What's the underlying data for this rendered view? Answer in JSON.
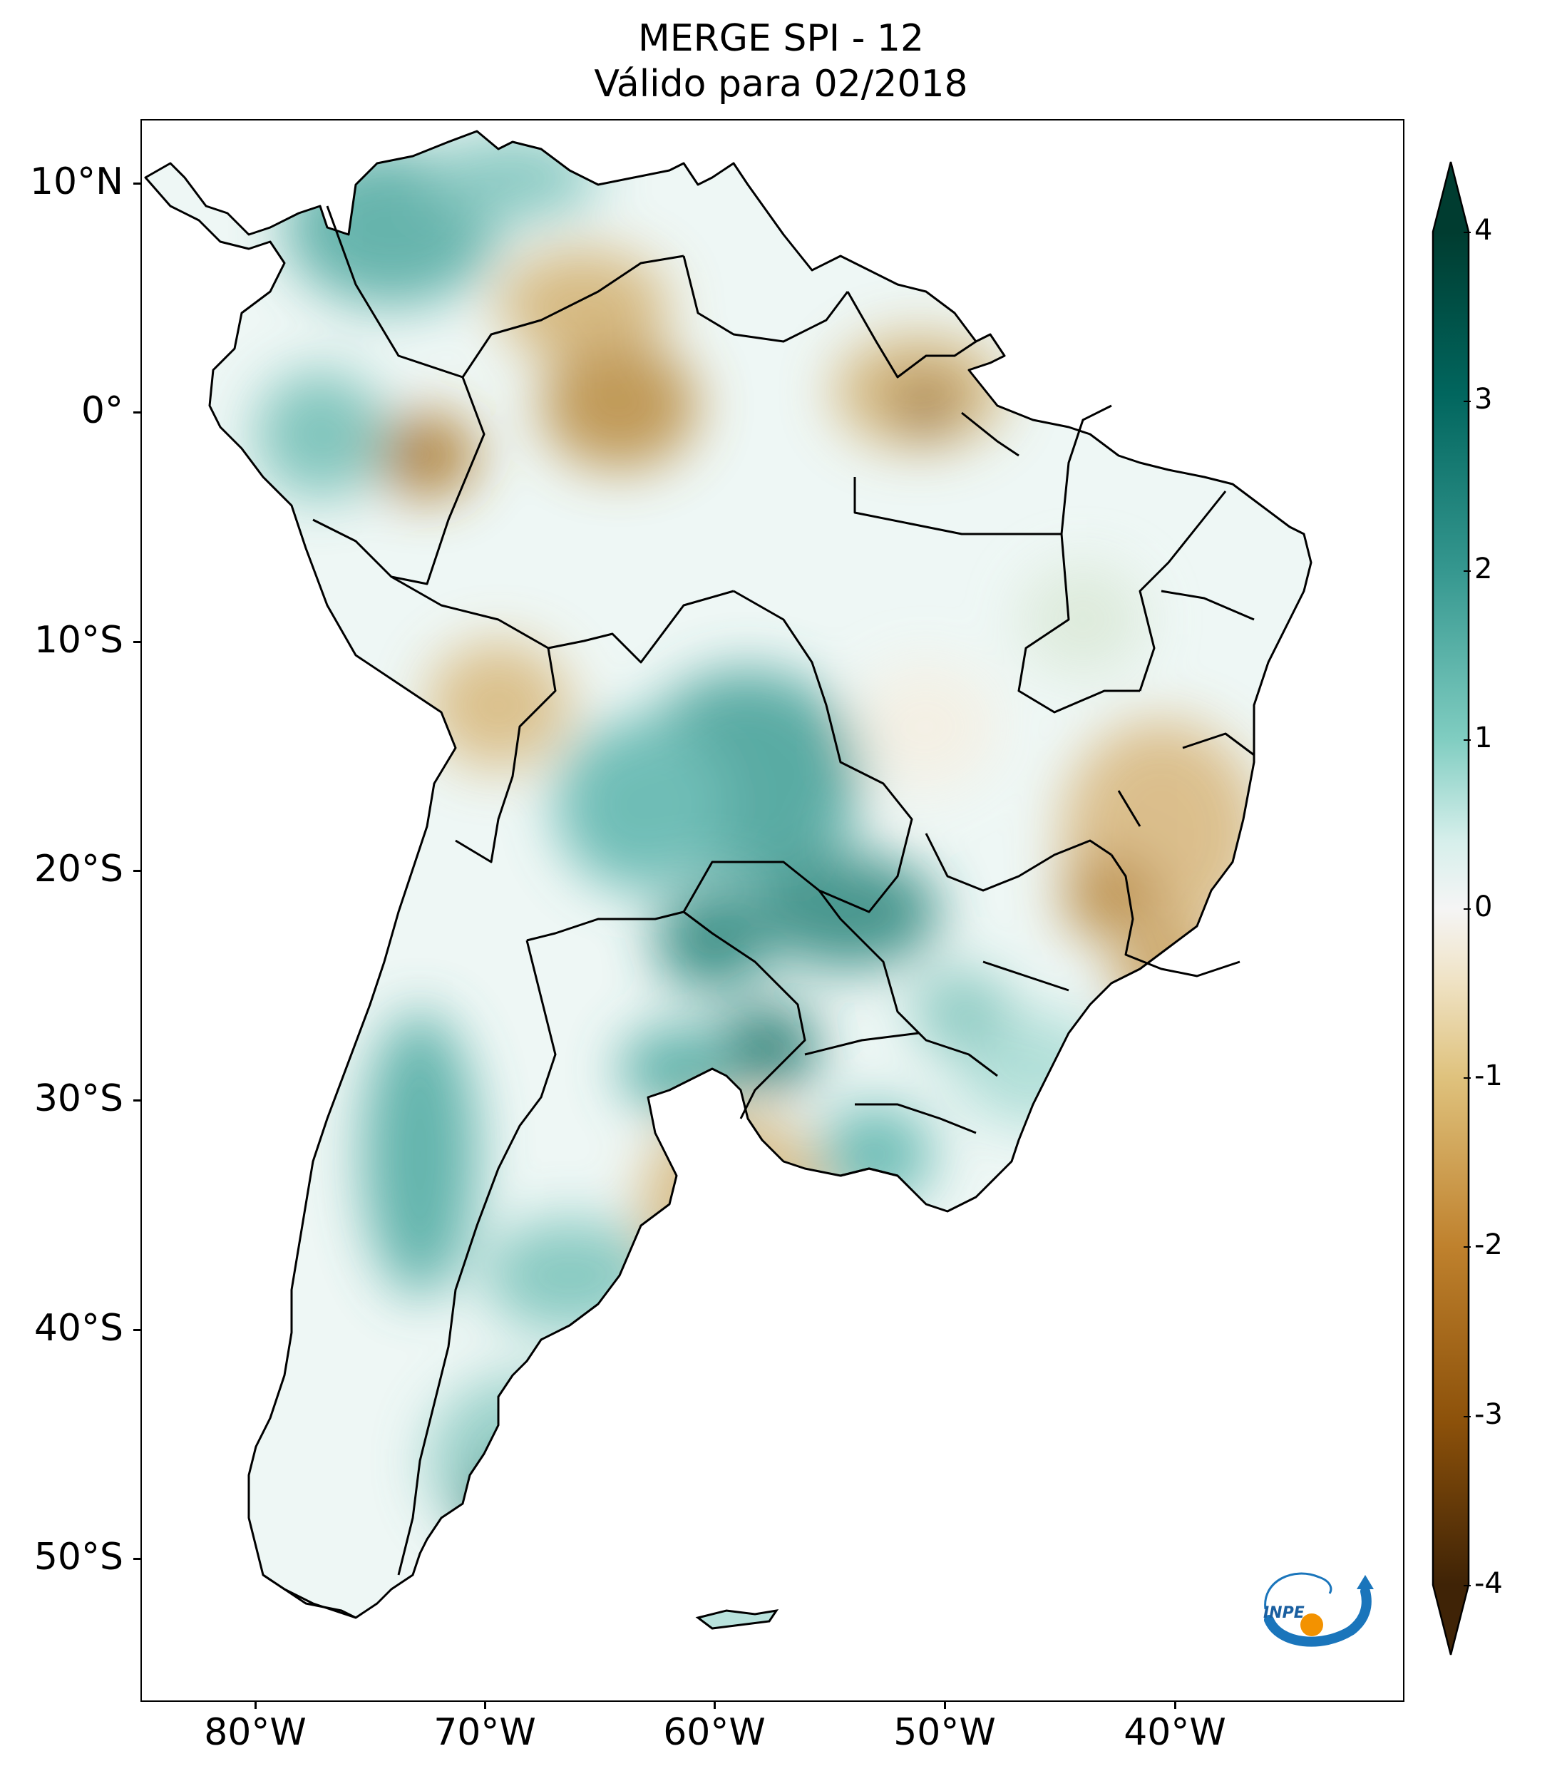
{
  "title": {
    "line1": "MERGE   SPI - 12",
    "line2": "Válido para 02/2018"
  },
  "map": {
    "region": "South America",
    "variable": "SPI - 12",
    "lat_labels": [
      "10°N",
      "0°",
      "10°S",
      "20°S",
      "30°S",
      "40°S",
      "50°S"
    ],
    "lon_labels": [
      "80°W",
      "70°W",
      "60°W",
      "50°W",
      "40°W"
    ],
    "lon_range": [
      -85,
      -30
    ],
    "lat_range": [
      -56,
      13
    ]
  },
  "colorbar": {
    "ticks": [
      "4",
      "3",
      "2",
      "1",
      "0",
      "-1",
      "-2",
      "-3",
      "-4"
    ],
    "min": -4,
    "max": 4,
    "extend": "both",
    "colors": {
      "dry_extreme": "#3f2306",
      "dry_strong": "#8c510a",
      "dry_moderate": "#c6923f",
      "dry_mild": "#ebd4a0",
      "neutral": "#f5f5f5",
      "wet_mild": "#c0e8e1",
      "wet_moderate": "#5ab4ac",
      "wet_strong": "#01665e",
      "wet_extreme": "#003c30"
    }
  },
  "logo": {
    "text": "INPE"
  }
}
